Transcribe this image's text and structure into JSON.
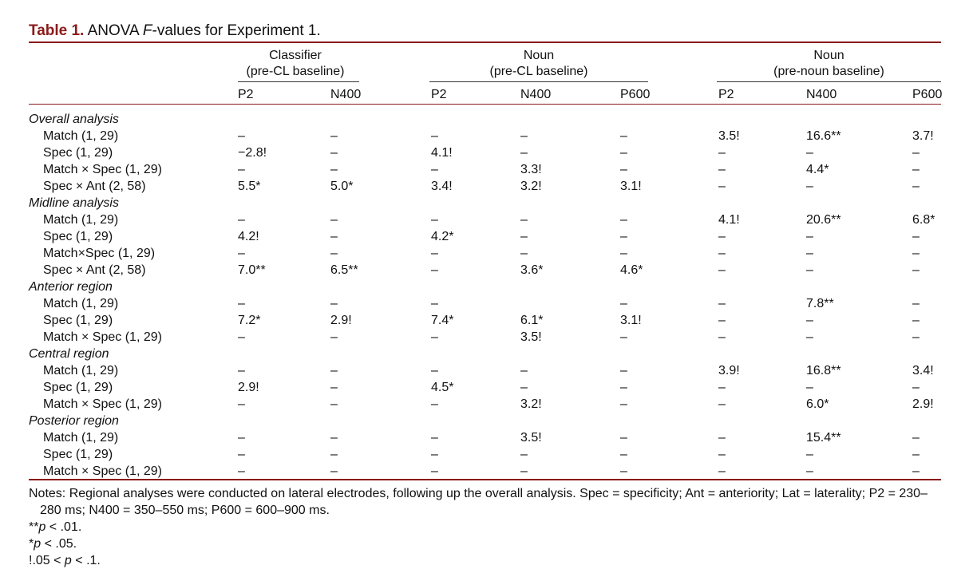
{
  "caption": {
    "label": "Table 1.",
    "prefix": "ANOVA ",
    "italic": "F",
    "suffix": "-values for Experiment 1."
  },
  "groups": [
    {
      "line1": "Classifier",
      "line2": "(pre-CL baseline)"
    },
    {
      "line1": "Noun",
      "line2": "(pre-CL baseline)"
    },
    {
      "line1": "Noun",
      "line2": "(pre-noun baseline)"
    }
  ],
  "columns": [
    "P2",
    "N400",
    "P2",
    "N400",
    "P600",
    "P2",
    "N400",
    "P600"
  ],
  "rows": [
    {
      "type": "section",
      "label": "Overall analysis"
    },
    {
      "type": "item",
      "label": "Match (1, 29)",
      "cells": [
        "–",
        "–",
        "–",
        "–",
        "–",
        "3.5!",
        "16.6**",
        "3.7!"
      ]
    },
    {
      "type": "item",
      "label": "Spec (1, 29)",
      "cells": [
        "−2.8!",
        "–",
        "4.1!",
        "–",
        "–",
        "–",
        "–",
        "–"
      ]
    },
    {
      "type": "item",
      "label": "Match × Spec (1, 29)",
      "cells": [
        "–",
        "–",
        "–",
        "3.3!",
        "–",
        "–",
        "4.4*",
        "–"
      ]
    },
    {
      "type": "item",
      "label": "Spec × Ant (2, 58)",
      "cells": [
        "5.5*",
        "5.0*",
        "3.4!",
        "3.2!",
        "3.1!",
        "–",
        "–",
        "–"
      ]
    },
    {
      "type": "section",
      "label": "Midline analysis"
    },
    {
      "type": "item",
      "label": "Match (1, 29)",
      "cells": [
        "–",
        "–",
        "–",
        "–",
        "–",
        "4.1!",
        "20.6**",
        "6.8*"
      ]
    },
    {
      "type": "item",
      "label": "Spec (1, 29)",
      "cells": [
        "4.2!",
        "–",
        "4.2*",
        "–",
        "–",
        "–",
        "–",
        "–"
      ]
    },
    {
      "type": "item",
      "label": "Match×Spec (1, 29)",
      "cells": [
        "–",
        "–",
        "–",
        "–",
        "–",
        "–",
        "–",
        "–"
      ]
    },
    {
      "type": "item",
      "label": "Spec × Ant (2, 58)",
      "cells": [
        "7.0**",
        "6.5**",
        "–",
        "3.6*",
        "4.6*",
        "–",
        "–",
        "–"
      ]
    },
    {
      "type": "section",
      "label": "Anterior region"
    },
    {
      "type": "item",
      "label": "Match (1, 29)",
      "cells": [
        "–",
        "–",
        "–",
        "",
        "–",
        "–",
        "7.8**",
        "–"
      ]
    },
    {
      "type": "item",
      "label": "Spec (1, 29)",
      "cells": [
        "7.2*",
        "2.9!",
        "7.4*",
        "6.1*",
        "3.1!",
        "–",
        "–",
        "–"
      ]
    },
    {
      "type": "item",
      "label": "Match × Spec (1, 29)",
      "cells": [
        "–",
        "–",
        "–",
        "3.5!",
        "–",
        "–",
        "–",
        "–"
      ]
    },
    {
      "type": "section",
      "label": "Central region"
    },
    {
      "type": "item",
      "label": "Match (1, 29)",
      "cells": [
        "–",
        "–",
        "–",
        "–",
        "–",
        "3.9!",
        "16.8**",
        "3.4!"
      ]
    },
    {
      "type": "item",
      "label": "Spec (1, 29)",
      "cells": [
        "2.9!",
        "–",
        "4.5*",
        "–",
        "–",
        "–",
        "–",
        "–"
      ]
    },
    {
      "type": "item",
      "label": "Match × Spec (1, 29)",
      "cells": [
        "–",
        "–",
        "–",
        "3.2!",
        "–",
        "–",
        "6.0*",
        "2.9!"
      ]
    },
    {
      "type": "section",
      "label": "Posterior region"
    },
    {
      "type": "item",
      "label": "Match (1, 29)",
      "cells": [
        "–",
        "–",
        "–",
        "3.5!",
        "–",
        "–",
        "15.4**",
        "–"
      ]
    },
    {
      "type": "item",
      "label": "Spec (1, 29)",
      "cells": [
        "–",
        "–",
        "–",
        "–",
        "–",
        "–",
        "–",
        "–"
      ]
    },
    {
      "type": "item",
      "label": "Match × Spec (1, 29)",
      "cells": [
        "–",
        "–",
        "–",
        "–",
        "–",
        "–",
        "–",
        "–"
      ]
    }
  ],
  "notes": {
    "line1": "Notes: Regional analyses were conducted on lateral electrodes, following up the overall analysis. Spec = specificity; Ant = anteriority; Lat = laterality; P2 = 230–",
    "line2": "280 ms; N400 = 350–550 ms; P600 = 600–900 ms.",
    "sig1_mark": "**",
    "sig1_p": "p",
    "sig1_rest": " < .01.",
    "sig2_mark": "*",
    "sig2_p": "p",
    "sig2_rest": " < .05.",
    "sig3_mark": "!.05 < ",
    "sig3_p": "p",
    "sig3_rest": " < .1."
  }
}
